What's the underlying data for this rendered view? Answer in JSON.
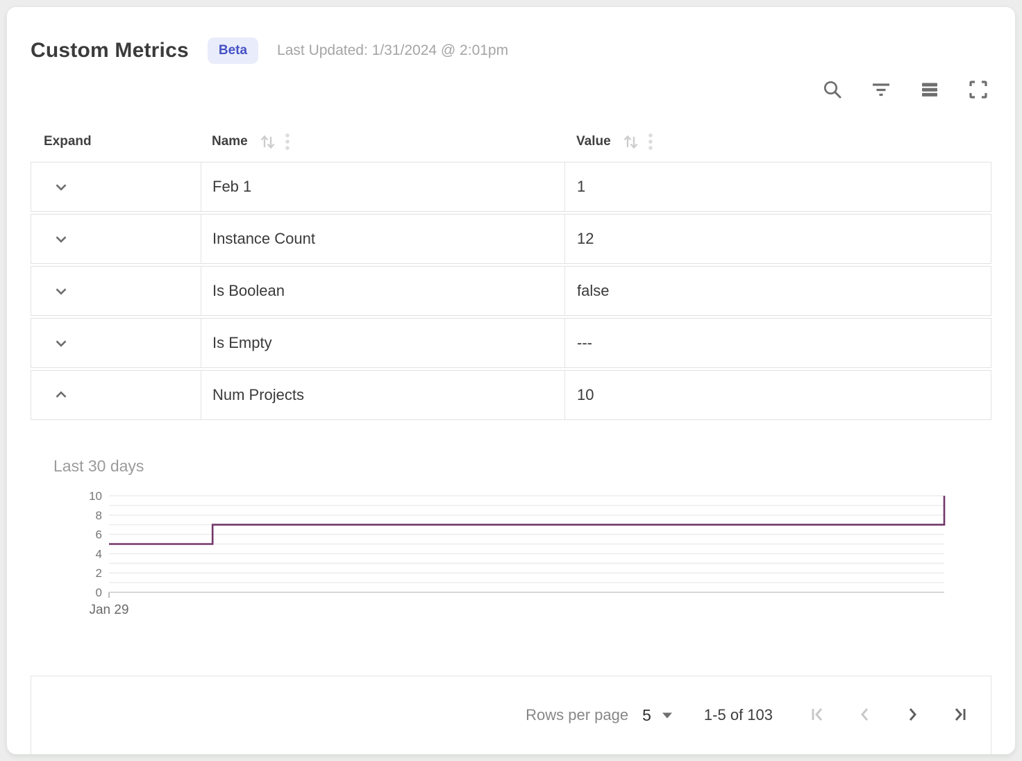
{
  "header": {
    "title": "Custom Metrics",
    "badge": "Beta",
    "last_updated": "Last Updated: 1/31/2024 @ 2:01pm",
    "badge_bg": "#e9ecfa",
    "badge_color": "#4652c4"
  },
  "toolbar": {
    "icons": [
      {
        "name": "search-icon"
      },
      {
        "name": "filter-icon"
      },
      {
        "name": "density-icon"
      },
      {
        "name": "fullscreen-icon"
      }
    ]
  },
  "table": {
    "columns": [
      {
        "label": "Expand",
        "sortable": false
      },
      {
        "label": "Name",
        "sortable": true
      },
      {
        "label": "Value",
        "sortable": true
      }
    ],
    "rows": [
      {
        "name": "Feb 1",
        "value": "1",
        "expanded": false
      },
      {
        "name": "Instance Count",
        "value": "12",
        "expanded": false
      },
      {
        "name": "Is Boolean",
        "value": "false",
        "expanded": false
      },
      {
        "name": "Is Empty",
        "value": "---",
        "expanded": false
      },
      {
        "name": "Num Projects",
        "value": "10",
        "expanded": true
      }
    ]
  },
  "chart_data": {
    "type": "line",
    "title": "Last 30 days",
    "subtitle": "",
    "xlabel": "",
    "ylabel": "",
    "ylim": [
      0,
      10
    ],
    "yticks": [
      0,
      2,
      4,
      6,
      8,
      10
    ],
    "minor_grid_every": 1,
    "grid": "on",
    "legend": "none",
    "x_tick_labels": [
      "Jan 29"
    ],
    "line_color": "#72376a",
    "series": [
      {
        "name": "Num Projects",
        "step": true,
        "points": [
          [
            0,
            5
          ],
          [
            12.4,
            5
          ],
          [
            12.4,
            7
          ],
          [
            100,
            7
          ],
          [
            100,
            10
          ]
        ]
      }
    ]
  },
  "pagination": {
    "rows_per_page_label": "Rows per page",
    "rows_per_page_value": "5",
    "range_label": "1-5 of 103",
    "first_disabled": true,
    "prev_disabled": true,
    "next_disabled": false,
    "last_disabled": false
  }
}
